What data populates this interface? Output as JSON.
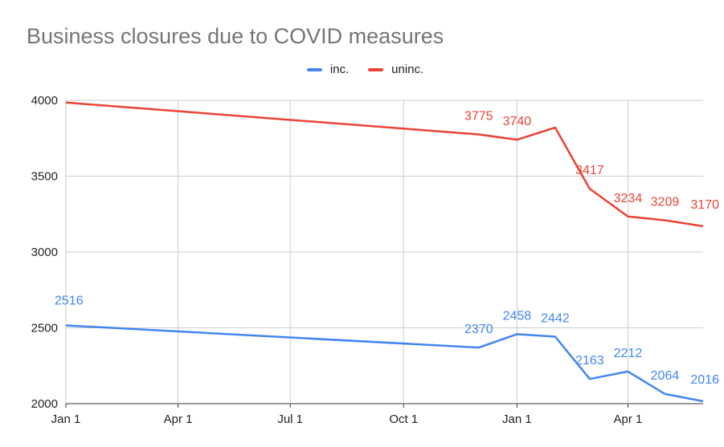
{
  "chart_data": {
    "type": "line",
    "title": "Business closures due to COVID measures",
    "xlabel": "",
    "ylabel": "",
    "x_ticks": [
      "Jan 1",
      "Apr 1",
      "Jul 1",
      "Oct 1",
      "Jan 1",
      "Apr 1"
    ],
    "y_ticks": [
      "2000",
      "2500",
      "3000",
      "3500",
      "4000"
    ],
    "ylim": [
      2000,
      4000
    ],
    "grid": true,
    "legend_position": "top",
    "x": [
      "2020-01-01",
      "2020-12-01",
      "2021-01-01",
      "2021-02-01",
      "2021-03-01",
      "2021-04-01",
      "2021-05-01",
      "2021-06-01"
    ],
    "series": [
      {
        "name": "inc.",
        "color": "#4285f4",
        "values": [
          2516,
          2370,
          2458,
          2442,
          2163,
          2212,
          2064,
          2016
        ],
        "labels": [
          "2516",
          "2370",
          "2458",
          "2442",
          "2163",
          "2212",
          "2064",
          "2016"
        ]
      },
      {
        "name": "uninc.",
        "color": "#ea4335",
        "values": [
          3985,
          3775,
          3740,
          3820,
          3417,
          3234,
          3209,
          3170
        ],
        "labels": [
          "",
          "3775",
          "3740",
          "",
          "3417",
          "3234",
          "3209",
          "3170"
        ]
      }
    ]
  }
}
